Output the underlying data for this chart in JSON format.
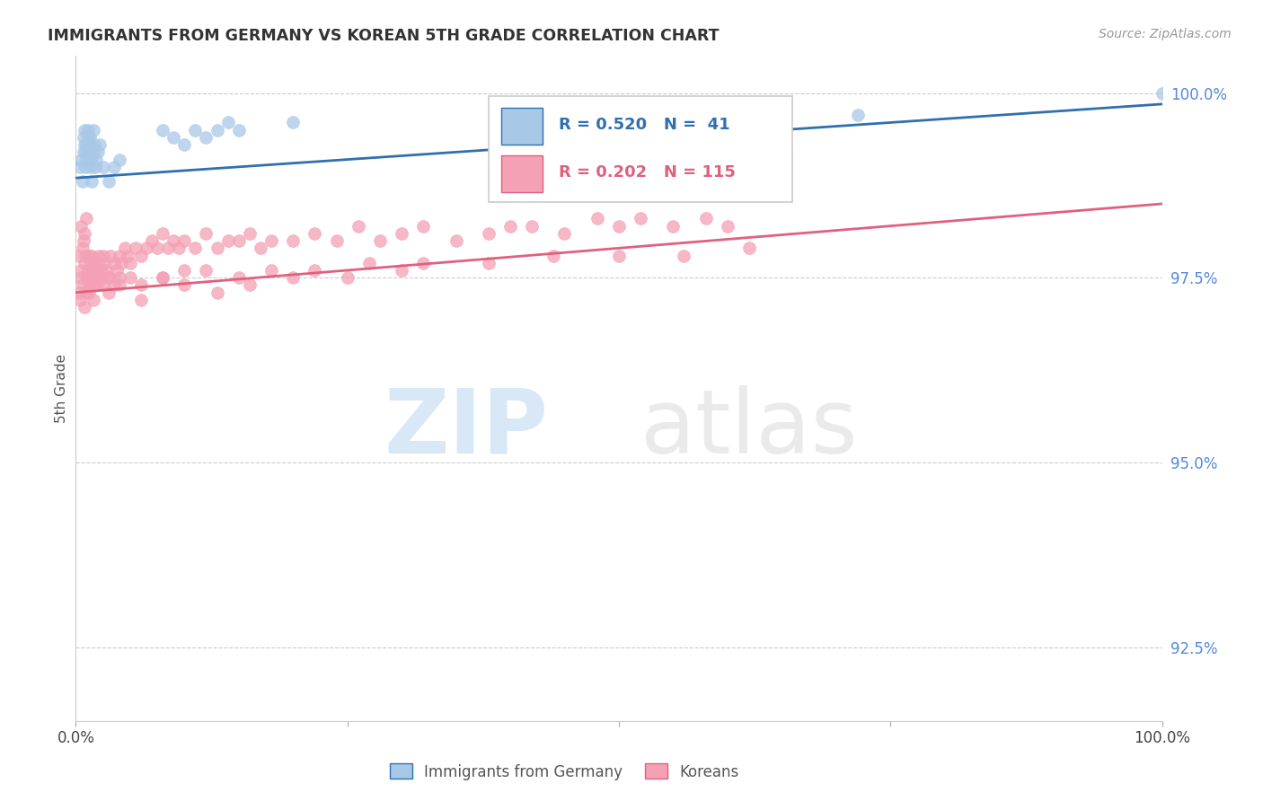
{
  "title": "IMMIGRANTS FROM GERMANY VS KOREAN 5TH GRADE CORRELATION CHART",
  "source": "Source: ZipAtlas.com",
  "ylabel": "5th Grade",
  "right_yticks": [
    92.5,
    95.0,
    97.5,
    100.0
  ],
  "right_ytick_labels": [
    "92.5%",
    "95.0%",
    "97.5%",
    "100.0%"
  ],
  "legend1_label": "Immigrants from Germany",
  "legend2_label": "Koreans",
  "r_germany": 0.52,
  "n_germany": 41,
  "r_korean": 0.202,
  "n_korean": 115,
  "germany_color": "#a8c8e8",
  "korean_color": "#f4a0b5",
  "germany_line_color": "#3070b0",
  "korean_line_color": "#e06080",
  "background_color": "#ffffff",
  "germany_x": [
    0.004,
    0.005,
    0.006,
    0.007,
    0.007,
    0.008,
    0.008,
    0.009,
    0.009,
    0.01,
    0.01,
    0.011,
    0.011,
    0.012,
    0.012,
    0.013,
    0.014,
    0.014,
    0.015,
    0.016,
    0.016,
    0.017,
    0.018,
    0.019,
    0.02,
    0.022,
    0.025,
    0.03,
    0.035,
    0.04,
    0.08,
    0.09,
    0.1,
    0.11,
    0.12,
    0.13,
    0.14,
    0.15,
    0.2,
    0.72,
    1.0
  ],
  "germany_y": [
    99.0,
    99.1,
    98.8,
    99.2,
    99.4,
    99.3,
    99.5,
    99.0,
    99.2,
    99.1,
    99.3,
    99.4,
    99.5,
    99.2,
    99.3,
    99.4,
    99.0,
    99.1,
    98.8,
    99.2,
    99.5,
    99.3,
    99.0,
    99.1,
    99.2,
    99.3,
    99.0,
    98.8,
    99.0,
    99.1,
    99.5,
    99.4,
    99.3,
    99.5,
    99.4,
    99.5,
    99.6,
    99.5,
    99.6,
    99.7,
    100.0
  ],
  "korean_x": [
    0.003,
    0.004,
    0.005,
    0.005,
    0.006,
    0.007,
    0.008,
    0.008,
    0.009,
    0.01,
    0.01,
    0.011,
    0.012,
    0.013,
    0.013,
    0.014,
    0.015,
    0.015,
    0.016,
    0.017,
    0.018,
    0.019,
    0.02,
    0.021,
    0.022,
    0.023,
    0.025,
    0.026,
    0.028,
    0.03,
    0.032,
    0.035,
    0.038,
    0.04,
    0.042,
    0.045,
    0.048,
    0.05,
    0.055,
    0.06,
    0.065,
    0.07,
    0.075,
    0.08,
    0.085,
    0.09,
    0.095,
    0.1,
    0.11,
    0.12,
    0.13,
    0.14,
    0.15,
    0.16,
    0.17,
    0.18,
    0.2,
    0.22,
    0.24,
    0.26,
    0.28,
    0.3,
    0.32,
    0.35,
    0.38,
    0.4,
    0.42,
    0.45,
    0.48,
    0.5,
    0.52,
    0.55,
    0.58,
    0.6,
    0.003,
    0.006,
    0.009,
    0.012,
    0.015,
    0.018,
    0.021,
    0.025,
    0.03,
    0.035,
    0.04,
    0.05,
    0.06,
    0.08,
    0.1,
    0.12,
    0.15,
    0.18,
    0.22,
    0.27,
    0.32,
    0.38,
    0.44,
    0.5,
    0.56,
    0.62,
    0.004,
    0.008,
    0.012,
    0.016,
    0.02,
    0.03,
    0.04,
    0.06,
    0.08,
    0.1,
    0.13,
    0.16,
    0.2,
    0.25,
    0.3
  ],
  "korean_y": [
    97.8,
    97.5,
    98.2,
    97.6,
    97.9,
    98.0,
    97.7,
    98.1,
    97.8,
    97.5,
    98.3,
    97.6,
    97.5,
    97.8,
    97.4,
    97.7,
    97.6,
    97.8,
    97.5,
    97.7,
    97.5,
    97.6,
    97.7,
    97.8,
    97.5,
    97.6,
    97.8,
    97.7,
    97.6,
    97.5,
    97.8,
    97.7,
    97.6,
    97.8,
    97.7,
    97.9,
    97.8,
    97.7,
    97.9,
    97.8,
    97.9,
    98.0,
    97.9,
    98.1,
    97.9,
    98.0,
    97.9,
    98.0,
    97.9,
    98.1,
    97.9,
    98.0,
    98.0,
    98.1,
    97.9,
    98.0,
    98.0,
    98.1,
    98.0,
    98.2,
    98.0,
    98.1,
    98.2,
    98.0,
    98.1,
    98.2,
    98.2,
    98.1,
    98.3,
    98.2,
    98.3,
    98.2,
    98.3,
    98.2,
    97.3,
    97.4,
    97.3,
    97.4,
    97.5,
    97.4,
    97.5,
    97.4,
    97.5,
    97.4,
    97.5,
    97.5,
    97.4,
    97.5,
    97.6,
    97.6,
    97.5,
    97.6,
    97.6,
    97.7,
    97.7,
    97.7,
    97.8,
    97.8,
    97.8,
    97.9,
    97.2,
    97.1,
    97.3,
    97.2,
    97.4,
    97.3,
    97.4,
    97.2,
    97.5,
    97.4,
    97.3,
    97.4,
    97.5,
    97.5,
    97.6
  ],
  "xlim": [
    0.0,
    1.0
  ],
  "ylim": [
    91.5,
    100.5
  ],
  "germany_line_x": [
    0.0,
    1.0
  ],
  "germany_line_y": [
    98.85,
    99.85
  ],
  "korean_line_x": [
    0.0,
    1.0
  ],
  "korean_line_y": [
    97.3,
    98.5
  ]
}
